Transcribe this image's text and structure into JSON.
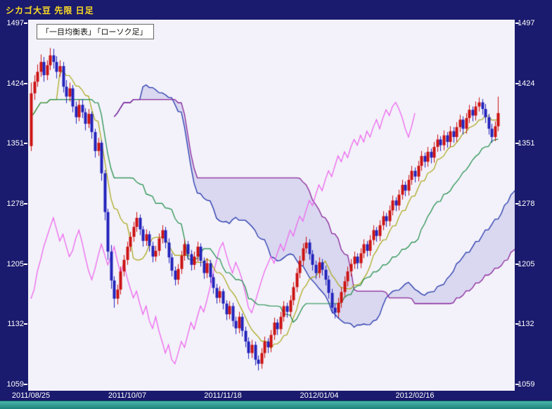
{
  "window": {
    "title": "シカゴ大豆 先限  日足"
  },
  "legend": {
    "items": [
      "「一目均衡表」",
      "「ローソク足」"
    ]
  },
  "axis": {
    "y_labels": [
      "1497",
      "1424",
      "1351",
      "1278",
      "1205",
      "1132",
      "1059"
    ],
    "x_labels": [
      {
        "day": 0,
        "label": "2011/08/25"
      },
      {
        "day": 30,
        "label": "2011/10/07"
      },
      {
        "day": 60,
        "label": "2011/11/18"
      },
      {
        "day": 90,
        "label": "2012/01/04"
      },
      {
        "day": 120,
        "label": "2012/02/16"
      }
    ]
  },
  "colors": {
    "background": "#1a1a6e",
    "plot_background": "#f3f2fa",
    "title_text": "#ffdd22",
    "axis_text": "#ffffff",
    "candle_up": "#cc1111",
    "candle_down": "#2222bb",
    "tenkan_line": "#a8a411",
    "kijun_line": "#1a8a44",
    "chikou_line": "#ee66ee",
    "senkou_a_line": "#2233aa",
    "senkou_b_line": "#882299",
    "cloud_fill": "rgba(150,150,215,0.28)",
    "scrollbar": "#2f9e96"
  },
  "chart_data": {
    "type": "candlestick+ichimoku",
    "title": "シカゴ大豆 先限  日足",
    "ylabel": "",
    "xlabel": "",
    "ylim": [
      1059,
      1497
    ],
    "y_ticks": [
      1497,
      1424,
      1351,
      1278,
      1205,
      1132,
      1059
    ],
    "x_tick_days": [
      0,
      30,
      60,
      90,
      120
    ],
    "x_tick_labels": [
      "2011/08/25",
      "2011/10/07",
      "2011/11/18",
      "2012/01/04",
      "2012/02/16"
    ],
    "legend": [
      "一目均衡表",
      "ローソク足"
    ],
    "ichimoku": {
      "tenkan": 9,
      "kijun": 26,
      "senkou_b": 52,
      "shift": 26
    },
    "ohlc": [
      [
        1348,
        1425,
        1342,
        1412
      ],
      [
        1412,
        1434,
        1404,
        1426
      ],
      [
        1426,
        1447,
        1420,
        1438
      ],
      [
        1438,
        1459,
        1432,
        1450
      ],
      [
        1450,
        1456,
        1426,
        1434
      ],
      [
        1434,
        1452,
        1428,
        1446
      ],
      [
        1446,
        1467,
        1440,
        1458
      ],
      [
        1458,
        1466,
        1442,
        1450
      ],
      [
        1450,
        1457,
        1430,
        1438
      ],
      [
        1438,
        1452,
        1432,
        1445
      ],
      [
        1445,
        1450,
        1413,
        1420
      ],
      [
        1420,
        1428,
        1400,
        1408
      ],
      [
        1408,
        1425,
        1402,
        1418
      ],
      [
        1418,
        1422,
        1389,
        1396
      ],
      [
        1396,
        1402,
        1375,
        1383
      ],
      [
        1383,
        1404,
        1378,
        1398
      ],
      [
        1398,
        1405,
        1382,
        1389
      ],
      [
        1389,
        1394,
        1367,
        1375
      ],
      [
        1375,
        1393,
        1370,
        1387
      ],
      [
        1387,
        1390,
        1357,
        1365
      ],
      [
        1365,
        1369,
        1334,
        1342
      ],
      [
        1342,
        1358,
        1336,
        1352
      ],
      [
        1352,
        1355,
        1306,
        1315
      ],
      [
        1315,
        1319,
        1258,
        1268
      ],
      [
        1268,
        1272,
        1210,
        1220
      ],
      [
        1220,
        1228,
        1175,
        1185
      ],
      [
        1185,
        1190,
        1152,
        1163
      ],
      [
        1163,
        1180,
        1156,
        1174
      ],
      [
        1174,
        1202,
        1168,
        1196
      ],
      [
        1196,
        1216,
        1190,
        1210
      ],
      [
        1210,
        1232,
        1204,
        1226
      ],
      [
        1226,
        1244,
        1220,
        1238
      ],
      [
        1238,
        1256,
        1232,
        1250
      ],
      [
        1250,
        1268,
        1244,
        1261
      ],
      [
        1261,
        1265,
        1240,
        1247
      ],
      [
        1247,
        1251,
        1226,
        1233
      ],
      [
        1233,
        1247,
        1227,
        1241
      ],
      [
        1241,
        1245,
        1220,
        1227
      ],
      [
        1227,
        1232,
        1207,
        1214
      ],
      [
        1214,
        1227,
        1208,
        1221
      ],
      [
        1221,
        1242,
        1215,
        1236
      ],
      [
        1236,
        1252,
        1230,
        1246
      ],
      [
        1246,
        1250,
        1224,
        1231
      ],
      [
        1231,
        1236,
        1206,
        1213
      ],
      [
        1213,
        1218,
        1190,
        1197
      ],
      [
        1197,
        1202,
        1179,
        1186
      ],
      [
        1186,
        1205,
        1180,
        1199
      ],
      [
        1199,
        1221,
        1193,
        1215
      ],
      [
        1215,
        1235,
        1209,
        1229
      ],
      [
        1229,
        1233,
        1210,
        1217
      ],
      [
        1217,
        1222,
        1197,
        1204
      ],
      [
        1204,
        1220,
        1198,
        1214
      ],
      [
        1214,
        1232,
        1208,
        1226
      ],
      [
        1226,
        1230,
        1202,
        1209
      ],
      [
        1209,
        1213,
        1187,
        1194
      ],
      [
        1194,
        1212,
        1188,
        1206
      ],
      [
        1206,
        1210,
        1182,
        1189
      ],
      [
        1189,
        1193,
        1169,
        1176
      ],
      [
        1176,
        1181,
        1157,
        1164
      ],
      [
        1164,
        1178,
        1158,
        1172
      ],
      [
        1172,
        1175,
        1150,
        1157
      ],
      [
        1157,
        1161,
        1137,
        1144
      ],
      [
        1144,
        1160,
        1138,
        1154
      ],
      [
        1154,
        1158,
        1129,
        1136
      ],
      [
        1136,
        1141,
        1120,
        1127
      ],
      [
        1127,
        1147,
        1121,
        1141
      ],
      [
        1141,
        1145,
        1117,
        1124
      ],
      [
        1124,
        1129,
        1104,
        1111
      ],
      [
        1111,
        1116,
        1090,
        1097
      ],
      [
        1097,
        1113,
        1091,
        1107
      ],
      [
        1107,
        1111,
        1082,
        1089
      ],
      [
        1089,
        1094,
        1076,
        1084
      ],
      [
        1084,
        1103,
        1078,
        1097
      ],
      [
        1097,
        1117,
        1091,
        1111
      ],
      [
        1111,
        1115,
        1097,
        1104
      ],
      [
        1104,
        1125,
        1098,
        1119
      ],
      [
        1119,
        1140,
        1113,
        1134
      ],
      [
        1134,
        1138,
        1119,
        1126
      ],
      [
        1126,
        1147,
        1120,
        1141
      ],
      [
        1141,
        1160,
        1135,
        1154
      ],
      [
        1154,
        1158,
        1140,
        1147
      ],
      [
        1147,
        1167,
        1141,
        1161
      ],
      [
        1161,
        1183,
        1155,
        1177
      ],
      [
        1177,
        1200,
        1171,
        1194
      ],
      [
        1194,
        1215,
        1188,
        1209
      ],
      [
        1209,
        1230,
        1203,
        1224
      ],
      [
        1224,
        1238,
        1218,
        1231
      ],
      [
        1231,
        1235,
        1210,
        1217
      ],
      [
        1217,
        1222,
        1197,
        1204
      ],
      [
        1204,
        1209,
        1187,
        1194
      ],
      [
        1194,
        1213,
        1188,
        1207
      ],
      [
        1207,
        1211,
        1191,
        1198
      ],
      [
        1198,
        1203,
        1179,
        1186
      ],
      [
        1186,
        1191,
        1163,
        1170
      ],
      [
        1170,
        1175,
        1145,
        1152
      ],
      [
        1152,
        1157,
        1139,
        1146
      ],
      [
        1146,
        1164,
        1140,
        1158
      ],
      [
        1158,
        1177,
        1152,
        1171
      ],
      [
        1171,
        1190,
        1165,
        1184
      ],
      [
        1184,
        1202,
        1178,
        1196
      ],
      [
        1196,
        1211,
        1190,
        1205
      ],
      [
        1205,
        1220,
        1199,
        1214
      ],
      [
        1214,
        1218,
        1199,
        1206
      ],
      [
        1206,
        1224,
        1200,
        1218
      ],
      [
        1218,
        1235,
        1212,
        1229
      ],
      [
        1229,
        1233,
        1214,
        1221
      ],
      [
        1221,
        1240,
        1215,
        1234
      ],
      [
        1234,
        1252,
        1228,
        1246
      ],
      [
        1246,
        1250,
        1232,
        1239
      ],
      [
        1239,
        1258,
        1233,
        1252
      ],
      [
        1252,
        1269,
        1246,
        1263
      ],
      [
        1263,
        1267,
        1250,
        1257
      ],
      [
        1257,
        1276,
        1251,
        1270
      ],
      [
        1270,
        1288,
        1264,
        1282
      ],
      [
        1282,
        1286,
        1269,
        1276
      ],
      [
        1276,
        1295,
        1270,
        1289
      ],
      [
        1289,
        1307,
        1283,
        1301
      ],
      [
        1301,
        1305,
        1287,
        1294
      ],
      [
        1294,
        1313,
        1288,
        1307
      ],
      [
        1307,
        1324,
        1301,
        1318
      ],
      [
        1318,
        1322,
        1304,
        1311
      ],
      [
        1311,
        1330,
        1305,
        1324
      ],
      [
        1324,
        1342,
        1318,
        1336
      ],
      [
        1336,
        1340,
        1322,
        1329
      ],
      [
        1329,
        1347,
        1323,
        1341
      ],
      [
        1341,
        1345,
        1327,
        1334
      ],
      [
        1334,
        1353,
        1328,
        1347
      ],
      [
        1347,
        1362,
        1341,
        1356
      ],
      [
        1356,
        1360,
        1342,
        1349
      ],
      [
        1349,
        1367,
        1343,
        1361
      ],
      [
        1361,
        1365,
        1346,
        1353
      ],
      [
        1353,
        1372,
        1347,
        1366
      ],
      [
        1366,
        1371,
        1352,
        1359
      ],
      [
        1359,
        1377,
        1353,
        1371
      ],
      [
        1371,
        1386,
        1365,
        1380
      ],
      [
        1380,
        1384,
        1362,
        1369
      ],
      [
        1369,
        1388,
        1363,
        1382
      ],
      [
        1382,
        1398,
        1376,
        1392
      ],
      [
        1392,
        1396,
        1378,
        1385
      ],
      [
        1385,
        1402,
        1379,
        1396
      ],
      [
        1396,
        1407,
        1390,
        1401
      ],
      [
        1401,
        1405,
        1386,
        1393
      ],
      [
        1393,
        1399,
        1376,
        1383
      ],
      [
        1383,
        1387,
        1362,
        1369
      ],
      [
        1369,
        1375,
        1352,
        1359
      ],
      [
        1359,
        1378,
        1354,
        1372
      ],
      [
        1372,
        1408,
        1366,
        1388
      ]
    ]
  }
}
